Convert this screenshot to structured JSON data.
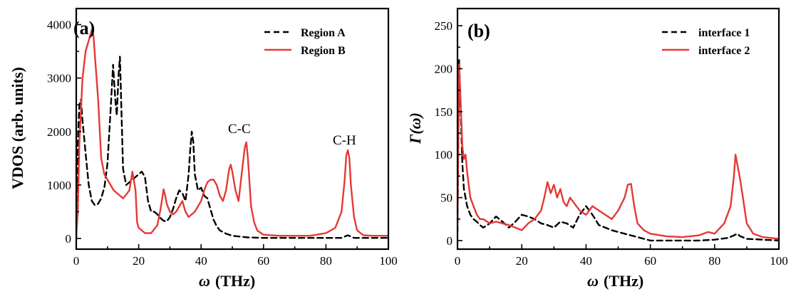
{
  "chart_data": [
    {
      "type": "line",
      "panel_label": "(a)",
      "xlabel": "ω",
      "xunit": "(THz)",
      "ylabel": "VDOS (arb. units)",
      "xlim": [
        0,
        100
      ],
      "ylim": [
        -200,
        4300
      ],
      "xticks": [
        "0",
        "20",
        "40",
        "60",
        "80",
        "100"
      ],
      "yticks": [
        "0",
        "1000",
        "2000",
        "3000",
        "4000"
      ],
      "legend_position": "top-right",
      "annotations": [
        {
          "text": "C-C",
          "x": 50,
          "y": 2150
        },
        {
          "text": "C-H",
          "x": 86,
          "y": 1950
        }
      ],
      "series": [
        {
          "name": "Region A",
          "color": "#000000",
          "style": "dashed",
          "x": [
            0,
            0.5,
            1,
            1.5,
            2,
            3,
            4,
            5,
            6,
            7,
            8,
            9,
            10,
            11,
            11.8,
            12.5,
            13,
            13.5,
            14,
            15,
            16,
            17,
            18,
            19,
            20,
            21,
            22,
            23,
            24,
            25,
            26,
            27,
            28,
            29,
            30,
            31,
            32,
            33,
            34,
            35,
            36,
            36.5,
            37,
            37.5,
            38,
            39,
            40,
            41,
            42,
            43,
            44,
            45,
            46,
            48,
            50,
            55,
            60,
            70,
            80,
            85,
            87,
            89,
            95,
            100
          ],
          "y": [
            0,
            1800,
            2500,
            2600,
            2200,
            1600,
            1000,
            700,
            620,
            650,
            750,
            950,
            1400,
            2400,
            3250,
            2600,
            2300,
            3000,
            3400,
            1300,
            1000,
            1050,
            1100,
            1150,
            1200,
            1250,
            1150,
            700,
            500,
            500,
            450,
            380,
            330,
            320,
            400,
            550,
            750,
            900,
            850,
            700,
            1200,
            1650,
            2000,
            1800,
            1200,
            900,
            950,
            800,
            750,
            550,
            350,
            230,
            150,
            90,
            50,
            20,
            10,
            10,
            10,
            10,
            60,
            10,
            10,
            10
          ]
        },
        {
          "name": "Region B",
          "color": "#e53935",
          "style": "solid",
          "x": [
            0,
            0.5,
            1,
            2,
            3,
            4,
            5,
            5.5,
            6,
            7,
            8,
            9,
            10,
            11,
            12,
            13,
            14,
            15,
            16,
            17,
            18,
            19,
            19.5,
            20,
            21,
            22,
            24,
            26,
            27,
            28,
            28.5,
            29,
            30,
            31,
            32,
            33,
            34,
            35,
            36,
            38,
            40,
            41,
            42,
            43,
            44,
            45,
            46,
            47,
            48,
            49,
            49.5,
            50,
            51,
            52,
            53,
            54,
            54.5,
            55,
            56,
            57,
            58,
            60,
            65,
            70,
            75,
            80,
            83,
            85,
            86,
            86.5,
            87,
            87.5,
            88,
            89,
            90,
            92,
            95,
            100
          ],
          "y": [
            50,
            500,
            1800,
            3000,
            3500,
            3700,
            3900,
            3800,
            3400,
            2600,
            1500,
            1200,
            1100,
            1000,
            900,
            850,
            800,
            750,
            820,
            900,
            1250,
            900,
            300,
            200,
            150,
            100,
            100,
            250,
            550,
            920,
            800,
            650,
            500,
            450,
            500,
            600,
            700,
            500,
            400,
            500,
            700,
            900,
            1050,
            1100,
            1100,
            1000,
            800,
            700,
            900,
            1300,
            1380,
            1250,
            900,
            700,
            1200,
            1700,
            1800,
            1500,
            600,
            300,
            150,
            70,
            50,
            50,
            50,
            100,
            200,
            500,
            1100,
            1550,
            1650,
            1500,
            1000,
            400,
            150,
            60,
            50,
            50
          ]
        }
      ]
    },
    {
      "type": "line",
      "panel_label": "(b)",
      "xlabel": "ω",
      "xunit": "(THz)",
      "ylabel": "Γ(ω)",
      "xlim": [
        0,
        100
      ],
      "ylim": [
        -10,
        270
      ],
      "xticks": [
        "0",
        "20",
        "40",
        "60",
        "80",
        "100"
      ],
      "yticks": [
        "0",
        "50",
        "100",
        "150",
        "200",
        "250"
      ],
      "legend_position": "top-right",
      "series": [
        {
          "name": "interface 1",
          "color": "#000000",
          "style": "dashed",
          "x": [
            0,
            0.5,
            1,
            1.5,
            2,
            3,
            4,
            5,
            6,
            7,
            8,
            10,
            12,
            14,
            16,
            18,
            20,
            22,
            24,
            26,
            28,
            30,
            32,
            34,
            36,
            38,
            40,
            42,
            44,
            46,
            48,
            50,
            52,
            54,
            56,
            58,
            60,
            65,
            70,
            75,
            80,
            84,
            86,
            87,
            88,
            90,
            95,
            100
          ],
          "y": [
            10,
            210,
            150,
            90,
            60,
            40,
            30,
            25,
            22,
            18,
            15,
            20,
            28,
            22,
            15,
            22,
            30,
            28,
            25,
            20,
            18,
            15,
            22,
            20,
            15,
            30,
            40,
            30,
            18,
            15,
            12,
            10,
            8,
            6,
            4,
            2,
            0,
            0,
            0,
            0,
            1,
            3,
            6,
            8,
            5,
            2,
            1,
            0
          ]
        },
        {
          "name": "interface 2",
          "color": "#e53935",
          "style": "solid",
          "x": [
            0,
            0.5,
            1,
            1.5,
            2,
            2.5,
            3,
            4,
            5,
            6,
            7,
            8,
            10,
            12,
            14,
            16,
            18,
            20,
            22,
            24,
            26,
            27,
            28,
            29,
            30,
            31,
            32,
            33,
            34,
            35,
            36,
            38,
            40,
            42,
            44,
            46,
            48,
            50,
            52,
            53,
            54,
            55,
            56,
            58,
            60,
            65,
            70,
            75,
            78,
            80,
            83,
            85,
            86,
            86.5,
            87,
            88,
            89,
            90,
            92,
            95,
            100
          ],
          "y": [
            25,
            205,
            160,
            110,
            95,
            100,
            80,
            50,
            40,
            30,
            25,
            25,
            20,
            22,
            20,
            18,
            15,
            12,
            20,
            25,
            35,
            50,
            68,
            55,
            65,
            50,
            60,
            45,
            40,
            50,
            45,
            35,
            30,
            40,
            35,
            30,
            25,
            35,
            50,
            65,
            66,
            40,
            20,
            12,
            8,
            5,
            4,
            6,
            10,
            8,
            20,
            40,
            75,
            100,
            90,
            70,
            45,
            20,
            8,
            4,
            2
          ]
        }
      ]
    }
  ]
}
